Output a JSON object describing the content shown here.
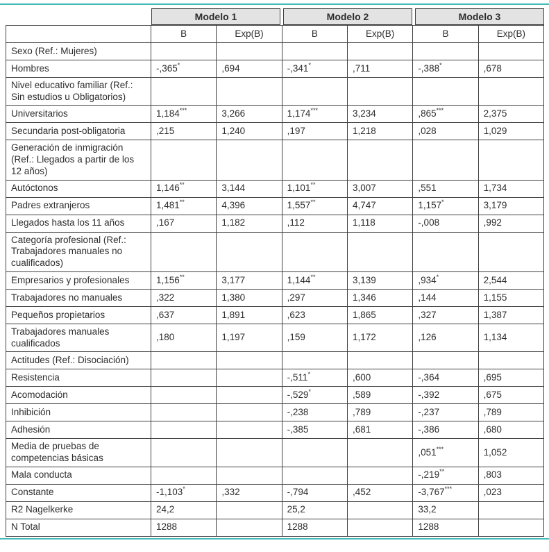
{
  "colors": {
    "accent_teal": "#45b8b8",
    "header_bg": "#e3e3e3",
    "border": "#3f3f3f",
    "text": "#2d2d2d"
  },
  "header": {
    "models": [
      "Modelo 1",
      "Modelo 2",
      "Modelo 3"
    ],
    "sub_columns": [
      "B",
      "Exp(B)"
    ]
  },
  "table": {
    "rows": [
      {
        "type": "category",
        "label": "Sexo (Ref.: Mujeres)",
        "cells": [
          "",
          "",
          "",
          "",
          "",
          ""
        ]
      },
      {
        "type": "data",
        "label": "Hombres",
        "cells": [
          "-,365*",
          ",694",
          "-,341*",
          ",711",
          "-,388*",
          ",678"
        ]
      },
      {
        "type": "category",
        "label": "Nivel educativo familiar (Ref.: Sin estudios u Obligatorios)",
        "cells": [
          "",
          "",
          "",
          "",
          "",
          ""
        ]
      },
      {
        "type": "data",
        "label": "Universitarios",
        "cells": [
          "1,184***",
          "3,266",
          "1,174***",
          "3,234",
          ",865***",
          "2,375"
        ]
      },
      {
        "type": "data",
        "label": "Secundaria post-obligatoria",
        "cells": [
          ",215",
          "1,240",
          ",197",
          "1,218",
          ",028",
          "1,029"
        ]
      },
      {
        "type": "category",
        "label": "Generación de inmigración (Ref.: Llegados a partir de los 12 años)",
        "cells": [
          "",
          "",
          "",
          "",
          "",
          ""
        ]
      },
      {
        "type": "data",
        "label": "Autóctonos",
        "cells": [
          "1,146**",
          "3,144",
          "1,101**",
          "3,007",
          ",551",
          "1,734"
        ]
      },
      {
        "type": "data",
        "label": "Padres extranjeros",
        "cells": [
          "1,481**",
          "4,396",
          "1,557**",
          "4,747",
          "1,157*",
          "3,179"
        ]
      },
      {
        "type": "data",
        "label": "Llegados hasta los 11 años",
        "cells": [
          ",167",
          "1,182",
          ",112",
          "1,118",
          "-,008",
          ",992"
        ]
      },
      {
        "type": "category",
        "label": "Categoría profesional (Ref.: Trabajadores manuales no cualificados)",
        "cells": [
          "",
          "",
          "",
          "",
          "",
          ""
        ]
      },
      {
        "type": "data",
        "label": "Empresarios y profesionales",
        "cells": [
          "1,156**",
          "3,177",
          "1,144**",
          "3,139",
          ",934*",
          "2,544"
        ]
      },
      {
        "type": "data",
        "label": "Trabajadores no manuales",
        "cells": [
          ",322",
          "1,380",
          ",297",
          "1,346",
          ",144",
          "1,155"
        ]
      },
      {
        "type": "data",
        "label": "Pequeños propietarios",
        "cells": [
          ",637",
          "1,891",
          ",623",
          "1,865",
          ",327",
          "1,387"
        ]
      },
      {
        "type": "data",
        "label": "Trabajadores manuales cualificados",
        "cells": [
          ",180",
          "1,197",
          ",159",
          "1,172",
          ",126",
          "1,134"
        ]
      },
      {
        "type": "category",
        "label": "Actitudes (Ref.: Disociación)",
        "cells": [
          "",
          "",
          "",
          "",
          "",
          ""
        ]
      },
      {
        "type": "data",
        "label": "Resistencia",
        "cells": [
          "",
          "",
          "-,511*",
          ",600",
          "-,364",
          ",695"
        ]
      },
      {
        "type": "data",
        "label": "Acomodación",
        "cells": [
          "",
          "",
          "-,529*",
          ",589",
          "-,392",
          ",675"
        ]
      },
      {
        "type": "data",
        "label": "Inhibición",
        "cells": [
          "",
          "",
          "-,238",
          ",789",
          "-,237",
          ",789"
        ]
      },
      {
        "type": "data",
        "label": "Adhesión",
        "cells": [
          "",
          "",
          "-,385",
          ",681",
          "-,386",
          ",680"
        ]
      },
      {
        "type": "data",
        "label": "Media de pruebas de competencias básicas",
        "cells": [
          "",
          "",
          "",
          "",
          ",051***",
          "1,052"
        ]
      },
      {
        "type": "data",
        "label": "Mala conducta",
        "cells": [
          "",
          "",
          "",
          "",
          "-,219**",
          ",803"
        ]
      },
      {
        "type": "data",
        "label": "Constante",
        "cells": [
          "-1,103*",
          ",332",
          "-,794",
          ",452",
          "-3,767***",
          ",023"
        ]
      },
      {
        "type": "span",
        "label": "R2 Nagelkerke",
        "cells": [
          "24,2",
          "25,2",
          "33,2"
        ]
      },
      {
        "type": "span",
        "label": "N Total",
        "cells": [
          "1288",
          "1288",
          "1288"
        ]
      }
    ]
  }
}
